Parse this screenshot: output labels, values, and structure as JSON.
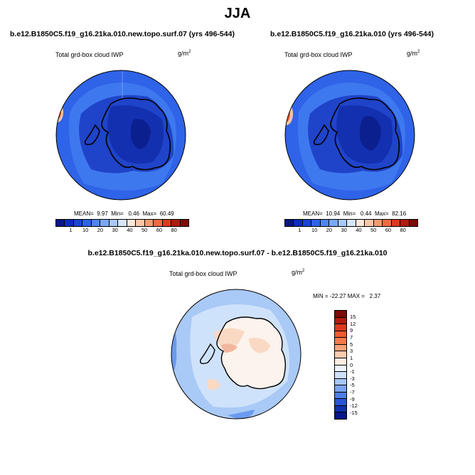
{
  "title": "JJA",
  "panels": [
    {
      "case": "b.e12.B1850C5.f19_g16.21ka.010.new.topo.surf.07 (yrs 496-544)",
      "variable": "Total grd-box cloud IWP",
      "units_base": "g/m",
      "units_exp": "2",
      "stats": "MEAN=  9.97  Min=   0.46  Max=  60.49",
      "colors": {
        "ocean": "#2f63e8",
        "ring": "#3e78ef",
        "ice": "#1f44c9",
        "core": "#1330b0",
        "deep": "#0b1f8f",
        "edge_warm": "#e8592a",
        "edge_hot": "#c8281a",
        "edge_light": "#f6c5a6"
      }
    },
    {
      "case": "b.e12.B1850C5.f19_g16.21ka.010 (yrs 496-544)",
      "variable": "Total grd-box cloud IWP",
      "units_base": "g/m",
      "units_exp": "2",
      "stats": "MEAN=  10.94  Min=   0.44  Max=  82.16",
      "colors": {
        "ocean": "#2f63e8",
        "ring": "#3e78ef",
        "ice": "#1f44c9",
        "core": "#1330b0",
        "deep": "#0b1f8f",
        "edge_warm": "#e8592a",
        "edge_hot": "#c8281a",
        "edge_light": "#f6c5a6"
      }
    }
  ],
  "abs_colorbar": {
    "labels": [
      "1",
      "10",
      "20",
      "30",
      "40",
      "50",
      "60",
      "80"
    ],
    "colors": [
      "#08158a",
      "#0c2cc0",
      "#1a45d8",
      "#2f63e8",
      "#4f86f2",
      "#7aa8f7",
      "#a9c9fb",
      "#d6e6fd",
      "#fde8da",
      "#fbc7a8",
      "#f79a72",
      "#f06a41",
      "#dc3a1e",
      "#b31a10",
      "#7e0a06"
    ]
  },
  "diff": {
    "title": "b.e12.B1850C5.f19_g16.21ka.010.new.topo.surf.07 - b.e12.B1850C5.f19_g16.21ka.010",
    "variable": "Total grd-box cloud IWP",
    "units_base": "g/m",
    "units_exp": "2",
    "stats": "MIN = -22.27 MAX =   2.37",
    "colors": {
      "bg": "#cfe2fb",
      "light": "#e6f0fd",
      "pale": "#a9c9f6",
      "blue": "#6b9bef",
      "deep": "#2a52d6",
      "land_warm": "#f9d9c3",
      "land_hot": "#f2b79c",
      "land_white": "#fbf3ec"
    }
  },
  "diff_colorbar": {
    "labels": [
      "15",
      "12",
      "9",
      "7",
      "5",
      "3",
      "1",
      "0",
      "-1",
      "-3",
      "-5",
      "-7",
      "-9",
      "-12",
      "-15"
    ],
    "colors": [
      "#7e0a06",
      "#b31a10",
      "#dc3a1e",
      "#f05a2e",
      "#f57b4d",
      "#f9a37a",
      "#fccbb0",
      "#fdeee4",
      "#eef4fd",
      "#cfe0fb",
      "#a7c5f6",
      "#7aa3ef",
      "#4f7ee6",
      "#2a55d8",
      "#1330b0",
      "#08158a"
    ]
  }
}
